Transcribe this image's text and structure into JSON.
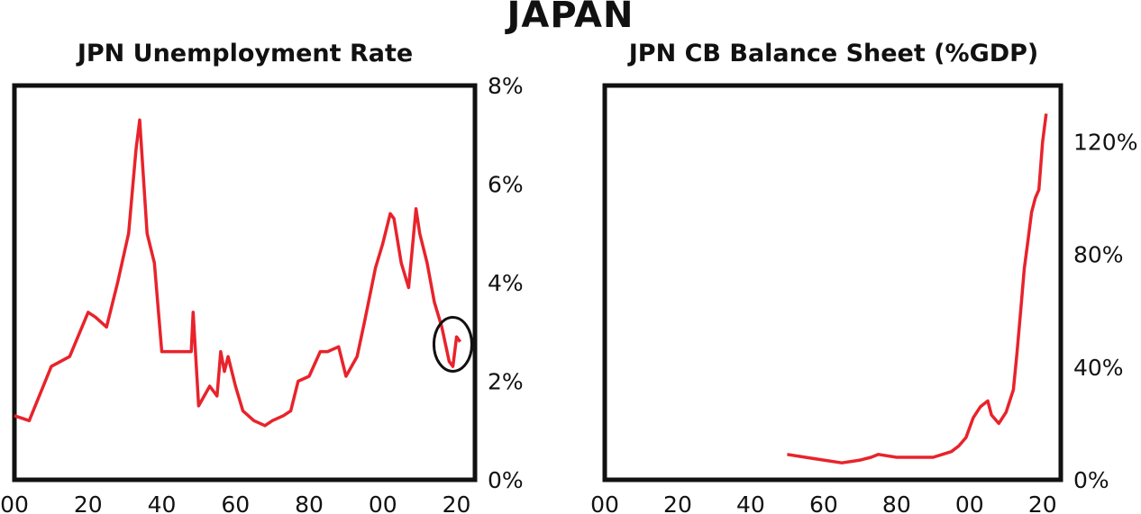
{
  "title": "JAPAN",
  "chart_data": [
    {
      "type": "line",
      "title": "JPN Unemployment Rate",
      "series": [
        {
          "x": [
            1900,
            1904,
            1910,
            1915,
            1920,
            1922,
            1925,
            1928,
            1931,
            1933,
            1934,
            1936,
            1938,
            1940,
            1948,
            1948.5,
            1950,
            1953,
            1955,
            1956,
            1957,
            1958,
            1960,
            1962,
            1965,
            1968,
            1970,
            1973,
            1975,
            1977,
            1980,
            1983,
            1985,
            1988,
            1990,
            1993,
            1995,
            1998,
            2000,
            2002,
            2003,
            2005,
            2007,
            2009,
            2010,
            2012,
            2014,
            2016,
            2018,
            2019,
            2020,
            2021
          ],
          "y": [
            1.3,
            1.2,
            2.3,
            2.5,
            3.4,
            3.3,
            3.1,
            4.0,
            5.0,
            6.7,
            7.3,
            5.0,
            4.4,
            2.6,
            2.6,
            3.4,
            1.5,
            1.9,
            1.7,
            2.6,
            2.2,
            2.5,
            1.9,
            1.4,
            1.2,
            1.1,
            1.2,
            1.3,
            1.4,
            2.0,
            2.1,
            2.6,
            2.6,
            2.7,
            2.1,
            2.5,
            3.2,
            4.3,
            4.8,
            5.4,
            5.3,
            4.4,
            3.9,
            5.5,
            5.0,
            4.4,
            3.6,
            3.1,
            2.4,
            2.3,
            2.9,
            2.8
          ]
        }
      ],
      "y_axis": {
        "position": "right",
        "ticks": [
          "0%",
          "2%",
          "4%",
          "6%",
          "8%"
        ],
        "ylim": [
          0,
          8
        ]
      },
      "x_axis": {
        "ticks": [
          "00",
          "20",
          "40",
          "60",
          "80",
          "00",
          "20"
        ],
        "xlim": [
          1900,
          2025
        ]
      },
      "annotation": "circle around 2020 reading"
    },
    {
      "type": "line",
      "title": "JPN CB Balance Sheet (%GDP)",
      "series": [
        {
          "x": [
            1950,
            1955,
            1960,
            1965,
            1970,
            1973,
            1975,
            1980,
            1985,
            1990,
            1995,
            1997,
            1999,
            2001,
            2003,
            2005,
            2006,
            2008,
            2010,
            2012,
            2013,
            2014,
            2015,
            2016,
            2017,
            2018,
            2019,
            2020,
            2021
          ],
          "y": [
            9,
            8,
            7,
            6,
            7,
            8,
            9,
            8,
            8,
            8,
            10,
            12,
            15,
            22,
            26,
            28,
            23,
            20,
            24,
            32,
            45,
            60,
            75,
            85,
            95,
            100,
            103,
            120,
            130
          ]
        }
      ],
      "y_axis": {
        "position": "right",
        "ticks": [
          "0%",
          "40%",
          "80%",
          "120%"
        ],
        "ylim": [
          0,
          140
        ]
      },
      "x_axis": {
        "ticks": [
          "00",
          "20",
          "40",
          "60",
          "80",
          "00",
          "20"
        ],
        "xlim": [
          1900,
          2025
        ]
      }
    }
  ],
  "colors": {
    "line": "#e8232b",
    "frame": "#111111",
    "annotation": "#111111"
  }
}
